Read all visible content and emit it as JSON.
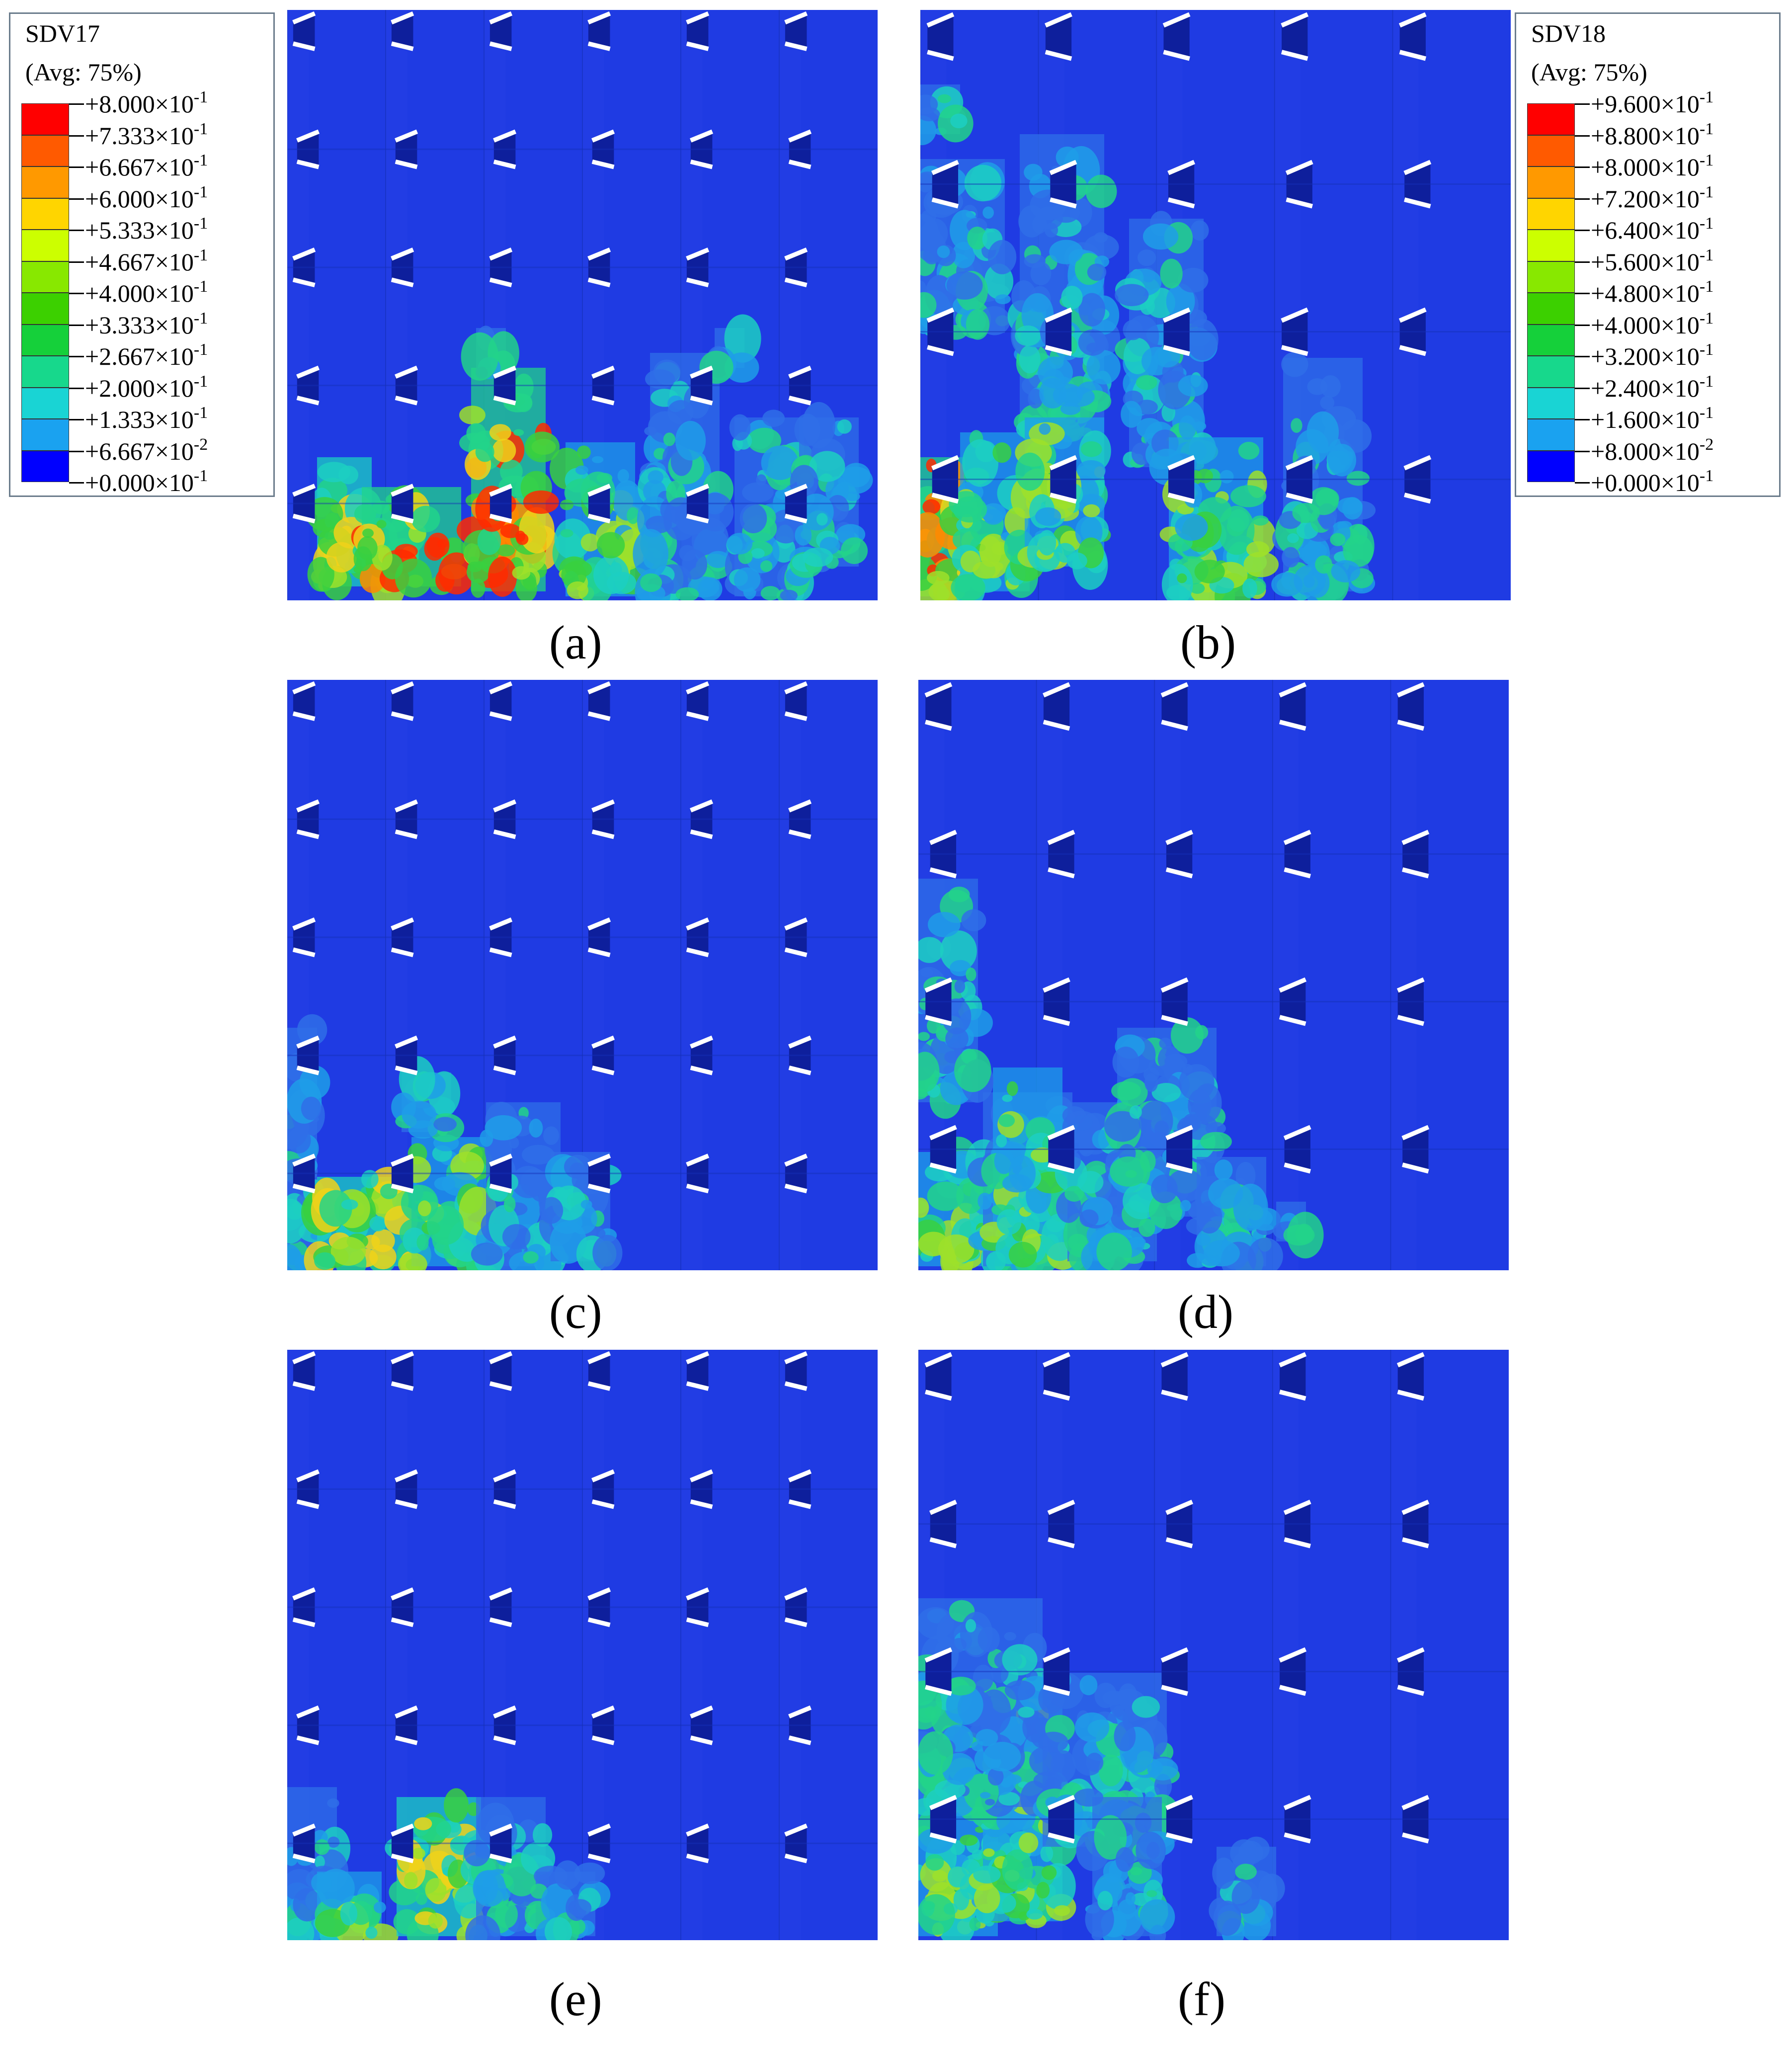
{
  "legend_left": {
    "title": "SDV17",
    "avg": "(Avg: 75%)",
    "entries": [
      {
        "mant": "+8.000",
        "exp": "-1"
      },
      {
        "mant": "+7.333",
        "exp": "-1"
      },
      {
        "mant": "+6.667",
        "exp": "-1"
      },
      {
        "mant": "+6.000",
        "exp": "-1"
      },
      {
        "mant": "+5.333",
        "exp": "-1"
      },
      {
        "mant": "+4.667",
        "exp": "-1"
      },
      {
        "mant": "+4.000",
        "exp": "-1"
      },
      {
        "mant": "+3.333",
        "exp": "-1"
      },
      {
        "mant": "+2.667",
        "exp": "-1"
      },
      {
        "mant": "+2.000",
        "exp": "-1"
      },
      {
        "mant": "+1.333",
        "exp": "-1"
      },
      {
        "mant": "+6.667",
        "exp": "-2"
      },
      {
        "mant": "+0.000",
        "exp": "-1"
      }
    ]
  },
  "legend_right": {
    "title": "SDV18",
    "avg": "(Avg: 75%)",
    "entries": [
      {
        "mant": "+9.600",
        "exp": "-1"
      },
      {
        "mant": "+8.800",
        "exp": "-1"
      },
      {
        "mant": "+8.000",
        "exp": "-1"
      },
      {
        "mant": "+7.200",
        "exp": "-1"
      },
      {
        "mant": "+6.400",
        "exp": "-1"
      },
      {
        "mant": "+5.600",
        "exp": "-1"
      },
      {
        "mant": "+4.800",
        "exp": "-1"
      },
      {
        "mant": "+4.000",
        "exp": "-1"
      },
      {
        "mant": "+3.200",
        "exp": "-1"
      },
      {
        "mant": "+2.400",
        "exp": "-1"
      },
      {
        "mant": "+1.600",
        "exp": "-1"
      },
      {
        "mant": "+8.000",
        "exp": "-2"
      },
      {
        "mant": "+0.000",
        "exp": "-1"
      }
    ]
  },
  "times_sign": "×10",
  "scale_colors": [
    "#ff0000",
    "#ff5a00",
    "#ff9900",
    "#ffd500",
    "#ccff00",
    "#88e800",
    "#3cd000",
    "#15d03a",
    "#17d88c",
    "#19d4d4",
    "#1aa2f0",
    "#0a5ae8",
    "#0000ff"
  ],
  "base_color": "#1f3be3",
  "panels": [
    {
      "caption": "(a)",
      "variable": "SDV17",
      "gap_cols": 6,
      "gap_rows": 5
    },
    {
      "caption": "(b)",
      "variable": "SDV18",
      "gap_cols": 5,
      "gap_rows": 4
    },
    {
      "caption": "(c)",
      "variable": "SDV17",
      "gap_cols": 6,
      "gap_rows": 5
    },
    {
      "caption": "(d)",
      "variable": "SDV18",
      "gap_cols": 5,
      "gap_rows": 4
    },
    {
      "caption": "(e)",
      "variable": "SDV17",
      "gap_cols": 6,
      "gap_rows": 5
    },
    {
      "caption": "(f)",
      "variable": "SDV18",
      "gap_cols": 5,
      "gap_rows": 4
    }
  ]
}
